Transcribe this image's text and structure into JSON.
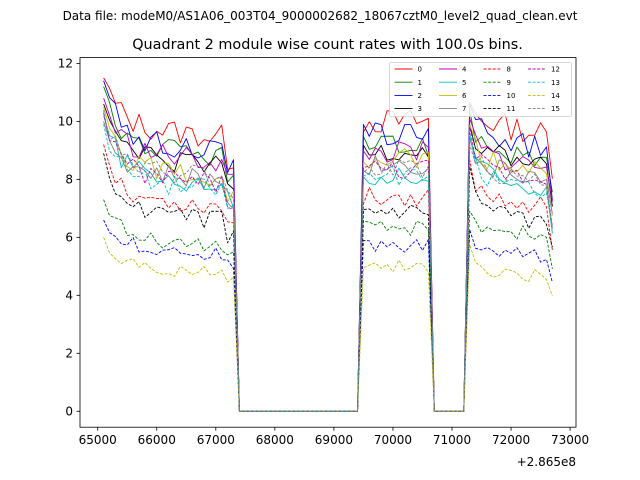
{
  "suptitle": "Data file: modeM0/AS1A06_003T04_9000002682_18067cztM0_level2_quad_clean.evt",
  "colors": {
    "0": "#ff0000",
    "1": "#008000",
    "2": "#0000ff",
    "3": "#000000",
    "4": "#bf00bf",
    "5": "#00bfbf",
    "6": "#bfbf00",
    "7": "#808080",
    "8": "#ff0000",
    "9": "#008000",
    "10": "#0000ff",
    "11": "#000000",
    "12": "#bf00bf",
    "13": "#00bfbf",
    "14": "#bfbf00",
    "15": "#808080"
  },
  "chart_data": {
    "type": "line",
    "title": "Quadrant 2 module wise count rates with 100.0s bins.",
    "xlabel": "",
    "ylabel": "",
    "offset_text": "+2.865e8",
    "x_offset": 286500000,
    "xlim": [
      64700,
      73100
    ],
    "ylim": [
      -0.55,
      12.2
    ],
    "xticks": [
      65000,
      66000,
      67000,
      68000,
      69000,
      70000,
      71000,
      72000,
      73000
    ],
    "yticks": [
      0,
      2,
      4,
      6,
      8,
      10,
      12
    ],
    "legend_position": "top-right",
    "legend_columns": 4,
    "bin": 100,
    "segments": [
      {
        "start": 65100,
        "end": 67300,
        "drop": 67400
      },
      {
        "start": 69500,
        "end": 70600,
        "rise": 69400,
        "drop": 70700
      },
      {
        "start": 71300,
        "end": 72700,
        "rise": 71200
      }
    ],
    "gap_ranges": [
      [
        67400,
        69400
      ],
      [
        70700,
        71200
      ]
    ],
    "series": [
      {
        "name": "0",
        "style": "solid",
        "levels": [
          11.5,
          9.9,
          10.0,
          10.1
        ]
      },
      {
        "name": "1",
        "style": "solid",
        "levels": [
          11.2,
          9.2,
          9.1,
          9.2
        ]
      },
      {
        "name": "2",
        "style": "solid",
        "levels": [
          11.4,
          9.4,
          9.6,
          9.6
        ]
      },
      {
        "name": "3",
        "style": "solid",
        "levels": [
          10.6,
          8.8,
          9.0,
          9.0
        ]
      },
      {
        "name": "4",
        "style": "solid",
        "levels": [
          10.8,
          9.0,
          8.9,
          8.9
        ]
      },
      {
        "name": "5",
        "style": "solid",
        "levels": [
          10.2,
          8.2,
          8.1,
          8.2
        ]
      },
      {
        "name": "6",
        "style": "solid",
        "levels": [
          10.5,
          8.5,
          8.7,
          8.7
        ]
      },
      {
        "name": "7",
        "style": "solid",
        "levels": [
          10.0,
          8.3,
          8.5,
          8.5
        ]
      },
      {
        "name": "8",
        "style": "dashed",
        "levels": [
          9.2,
          7.4,
          7.4,
          7.5
        ]
      },
      {
        "name": "9",
        "style": "dashed",
        "levels": [
          7.3,
          6.0,
          6.3,
          6.4
        ]
      },
      {
        "name": "10",
        "style": "dashed",
        "levels": [
          6.6,
          5.7,
          5.7,
          5.6
        ]
      },
      {
        "name": "11",
        "style": "dashed",
        "levels": [
          8.9,
          6.9,
          6.8,
          6.9
        ]
      },
      {
        "name": "12",
        "style": "dashed",
        "levels": [
          10.3,
          8.2,
          8.3,
          8.4
        ]
      },
      {
        "name": "13",
        "style": "dashed",
        "levels": [
          9.9,
          8.0,
          8.1,
          8.1
        ]
      },
      {
        "name": "14",
        "style": "dashed",
        "levels": [
          6.0,
          5.0,
          5.0,
          4.9
        ]
      },
      {
        "name": "15",
        "style": "dashed",
        "levels": [
          10.4,
          8.4,
          8.4,
          8.4
        ]
      }
    ]
  }
}
